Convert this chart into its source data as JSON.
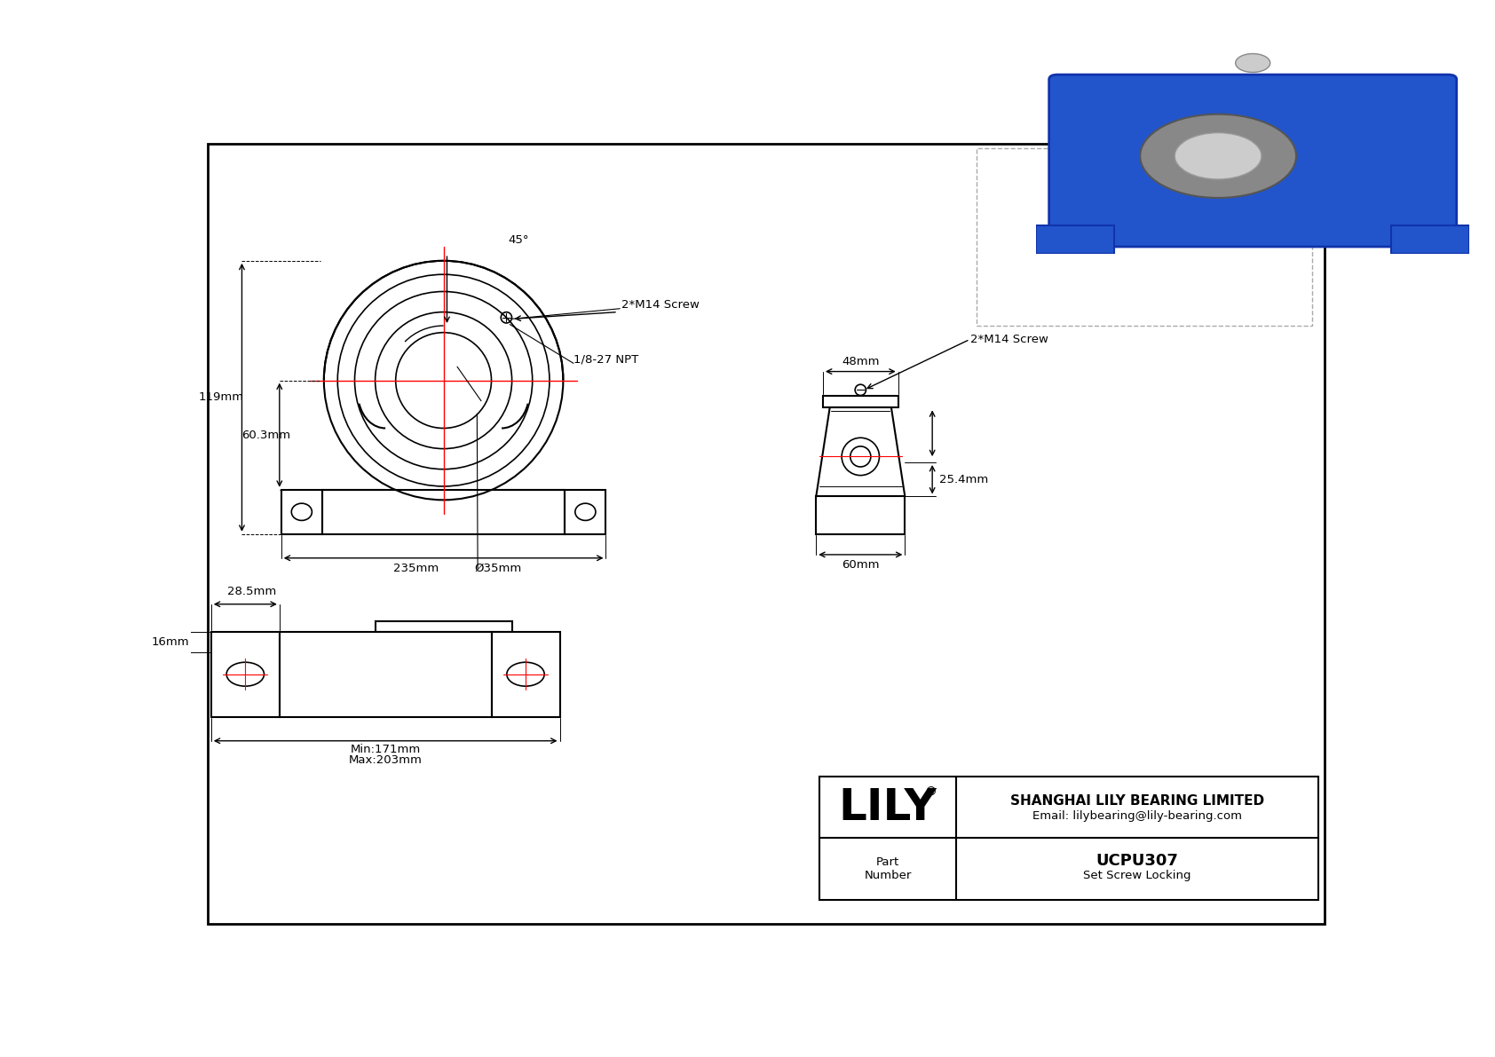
{
  "bg_color": "#ffffff",
  "line_color": "#000000",
  "red_color": "#ff0000",
  "dim_color": "#000000",
  "title_company": "SHANGHAI LILY BEARING LIMITED",
  "title_email": "Email: lilybearing@lily-bearing.com",
  "part_number": "UCPU307",
  "part_type": "Set Screw Locking",
  "brand": "LILY",
  "brand_reg": "®",
  "label_part": "Part\nNumber",
  "dim_119": "119mm",
  "dim_603": "60.3mm",
  "dim_235": "235mm",
  "dim_35": "Ø35mm",
  "dim_45": "45°",
  "dim_npt": "1/8-27 NPT",
  "dim_screw": "2*M14 Screw",
  "dim_48": "48mm",
  "dim_254": "25.4mm",
  "dim_60": "60mm",
  "dim_285": "28.5mm",
  "dim_16": "16mm",
  "dim_min": "Min:171mm",
  "dim_max": "Max:203mm"
}
